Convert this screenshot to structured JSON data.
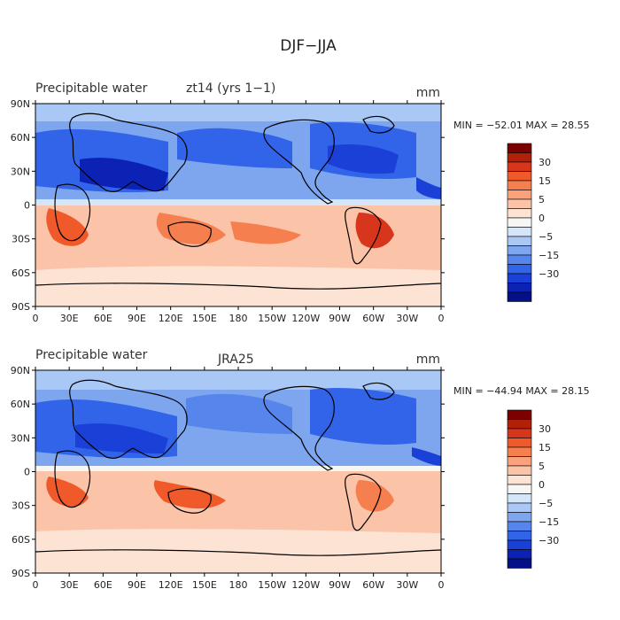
{
  "title": "DJF−JJA",
  "panels": [
    {
      "left_title": "Precipitable water",
      "center_title": "zt14  (yrs 1−1)",
      "units": "mm",
      "stats": "MIN = −52.01  MAX =  28.55"
    },
    {
      "left_title": "Precipitable water",
      "center_title": "JRA25",
      "units": "mm",
      "stats": "MIN = −44.94  MAX =  28.15"
    }
  ],
  "lat_labels": [
    "90N",
    "60N",
    "30N",
    "0",
    "30S",
    "60S",
    "90S"
  ],
  "lon_labels": [
    "0",
    "30E",
    "60E",
    "90E",
    "120E",
    "150E",
    "180",
    "150W",
    "120W",
    "90W",
    "60W",
    "30W",
    "0"
  ],
  "colorbar": {
    "labels": [
      "30",
      "15",
      "5",
      "0",
      "−5",
      "−15",
      "−30"
    ],
    "colors": [
      "#7d0000",
      "#b2200a",
      "#d8361c",
      "#f05a2a",
      "#f57f4e",
      "#f9a27c",
      "#fbc3a7",
      "#fde3d3",
      "#f6f6f4",
      "#d6e6fa",
      "#a9c8f5",
      "#7ea6ef",
      "#5685ec",
      "#3264ea",
      "#1b40d7",
      "#0c22b4",
      "#031088"
    ]
  }
}
